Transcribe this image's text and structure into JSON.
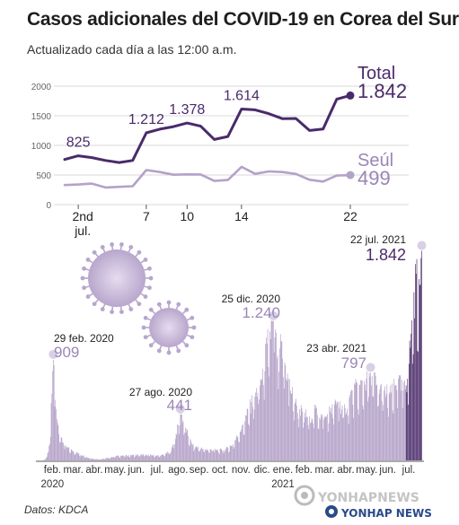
{
  "title": "Casos adicionales del COVID-19 en Corea del Sur",
  "subtitle": "Actualizado cada día a las 12:00 a.m.",
  "source": "Datos: KDCA",
  "watermark": {
    "line1": "YONHAPNEWS",
    "line2": "YONHAP NEWS"
  },
  "colors": {
    "total": "#4a2a6a",
    "seoul": "#b4a2c8",
    "seoul_label": "#9a86b6",
    "bars": "#b19ec6",
    "bars_dark": "#4a2a6a",
    "grid": "#cccccc",
    "virus": "#b8a6cc"
  },
  "chart_data": [
    {
      "type": "line",
      "name": "top-daily",
      "x_ticks": [
        "2nd",
        "7",
        "10",
        "14",
        "22"
      ],
      "x_tick_sublabel": "jul.",
      "x_tick_days": [
        2,
        7,
        10,
        14,
        22
      ],
      "yticks": [
        "0",
        "500",
        "1000",
        "1500",
        "2000"
      ],
      "ylim": [
        0,
        2000
      ],
      "xlim": [
        1,
        22
      ],
      "series": [
        {
          "name": "Total",
          "end_label": "1.842",
          "x": [
            1,
            2,
            3,
            4,
            5,
            6,
            7,
            8,
            9,
            10,
            11,
            12,
            13,
            14,
            15,
            16,
            17,
            18,
            19,
            20,
            21,
            22
          ],
          "values": [
            762,
            825,
            794,
            746,
            711,
            746,
            1212,
            1275,
            1316,
            1378,
            1324,
            1100,
            1150,
            1614,
            1600,
            1536,
            1452,
            1454,
            1252,
            1278,
            1781,
            1842
          ],
          "point_labels": [
            {
              "day": 2,
              "text": "825"
            },
            {
              "day": 7,
              "text": "1.212"
            },
            {
              "day": 10,
              "text": "1.378"
            },
            {
              "day": 14,
              "text": "1.614"
            }
          ]
        },
        {
          "name": "Seúl",
          "end_label": "499",
          "x": [
            1,
            2,
            3,
            4,
            5,
            6,
            7,
            8,
            9,
            10,
            11,
            12,
            13,
            14,
            15,
            16,
            17,
            18,
            19,
            20,
            21,
            22
          ],
          "values": [
            330,
            340,
            355,
            290,
            300,
            310,
            583,
            550,
            505,
            510,
            509,
            400,
            415,
            638,
            520,
            560,
            550,
            518,
            420,
            390,
            491,
            499
          ]
        }
      ]
    },
    {
      "type": "bar",
      "name": "bottom-history",
      "month_ticks": [
        "feb.",
        "mar.",
        "abr.",
        "may.",
        "jun.",
        "jul.",
        "ago.",
        "sep.",
        "oct.",
        "nov.",
        "dic.",
        "ene.",
        "feb.",
        "mar.",
        "abr.",
        "may.",
        "jun.",
        "jul."
      ],
      "year_labels": [
        {
          "text": "2020",
          "month_index": 0
        },
        {
          "text": "2021",
          "month_index": 11
        }
      ],
      "ylim": [
        0,
        1900
      ],
      "anchors": [
        {
          "day": 0,
          "value": 0
        },
        {
          "day": 6,
          "value": 2
        },
        {
          "day": 10,
          "value": 30
        },
        {
          "day": 14,
          "value": 140
        },
        {
          "day": 19,
          "value": 909
        },
        {
          "day": 22,
          "value": 520
        },
        {
          "day": 26,
          "value": 300
        },
        {
          "day": 30,
          "value": 200
        },
        {
          "day": 36,
          "value": 120
        },
        {
          "day": 45,
          "value": 90
        },
        {
          "day": 55,
          "value": 60
        },
        {
          "day": 70,
          "value": 18
        },
        {
          "day": 85,
          "value": 8
        },
        {
          "day": 95,
          "value": 20
        },
        {
          "day": 110,
          "value": 40
        },
        {
          "day": 130,
          "value": 45
        },
        {
          "day": 150,
          "value": 50
        },
        {
          "day": 170,
          "value": 40
        },
        {
          "day": 185,
          "value": 80
        },
        {
          "day": 195,
          "value": 300
        },
        {
          "day": 198,
          "value": 441
        },
        {
          "day": 205,
          "value": 280
        },
        {
          "day": 215,
          "value": 130
        },
        {
          "day": 230,
          "value": 100
        },
        {
          "day": 245,
          "value": 90
        },
        {
          "day": 260,
          "value": 90
        },
        {
          "day": 272,
          "value": 140
        },
        {
          "day": 285,
          "value": 300
        },
        {
          "day": 298,
          "value": 500
        },
        {
          "day": 312,
          "value": 700
        },
        {
          "day": 320,
          "value": 1000
        },
        {
          "day": 329,
          "value": 1240
        },
        {
          "day": 335,
          "value": 900
        },
        {
          "day": 340,
          "value": 1020
        },
        {
          "day": 350,
          "value": 700
        },
        {
          "day": 360,
          "value": 500
        },
        {
          "day": 370,
          "value": 420
        },
        {
          "day": 380,
          "value": 380
        },
        {
          "day": 390,
          "value": 450
        },
        {
          "day": 400,
          "value": 350
        },
        {
          "day": 410,
          "value": 450
        },
        {
          "day": 420,
          "value": 500
        },
        {
          "day": 430,
          "value": 450
        },
        {
          "day": 440,
          "value": 600
        },
        {
          "day": 450,
          "value": 650
        },
        {
          "day": 460,
          "value": 700
        },
        {
          "day": 466,
          "value": 797
        },
        {
          "day": 475,
          "value": 650
        },
        {
          "day": 485,
          "value": 600
        },
        {
          "day": 495,
          "value": 580
        },
        {
          "day": 505,
          "value": 700
        },
        {
          "day": 512,
          "value": 600
        },
        {
          "day": 518,
          "value": 700
        },
        {
          "day": 524,
          "value": 1200
        },
        {
          "day": 530,
          "value": 1600
        },
        {
          "day": 535,
          "value": 1500
        },
        {
          "day": 538,
          "value": 1842
        }
      ],
      "dark_from_day": 516,
      "annotations": [
        {
          "date": "29 feb. 2020",
          "value_text": "909",
          "day": 19,
          "value": 909
        },
        {
          "date": "27 ago. 2020",
          "value_text": "441",
          "day": 198,
          "value": 441
        },
        {
          "date": "25 dic. 2020",
          "value_text": "1.240",
          "day": 329,
          "value": 1240
        },
        {
          "date": "23 abr. 2021",
          "value_text": "797",
          "day": 466,
          "value": 797
        },
        {
          "date": "22 jul. 2021",
          "value_text": "1.842",
          "day": 538,
          "value": 1842
        }
      ]
    }
  ]
}
